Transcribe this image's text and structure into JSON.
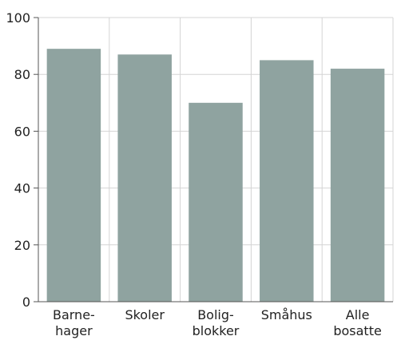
{
  "chart_data": {
    "type": "bar",
    "title": "",
    "xlabel": "",
    "ylabel": "",
    "categories": [
      [
        "Barne-",
        "hager"
      ],
      [
        "Skoler"
      ],
      [
        "Bolig-",
        "blokker"
      ],
      [
        "Småhus"
      ],
      [
        "Alle",
        "bosatte"
      ]
    ],
    "values": [
      89,
      87,
      70,
      85,
      82
    ],
    "ylim": [
      0,
      100
    ],
    "yticks": [
      0,
      20,
      40,
      60,
      80,
      100
    ],
    "grid": true,
    "legend": "none",
    "colors": {
      "bar": "#8fa3a0",
      "grid": "#d4d4d4",
      "axis": "#555555"
    }
  }
}
